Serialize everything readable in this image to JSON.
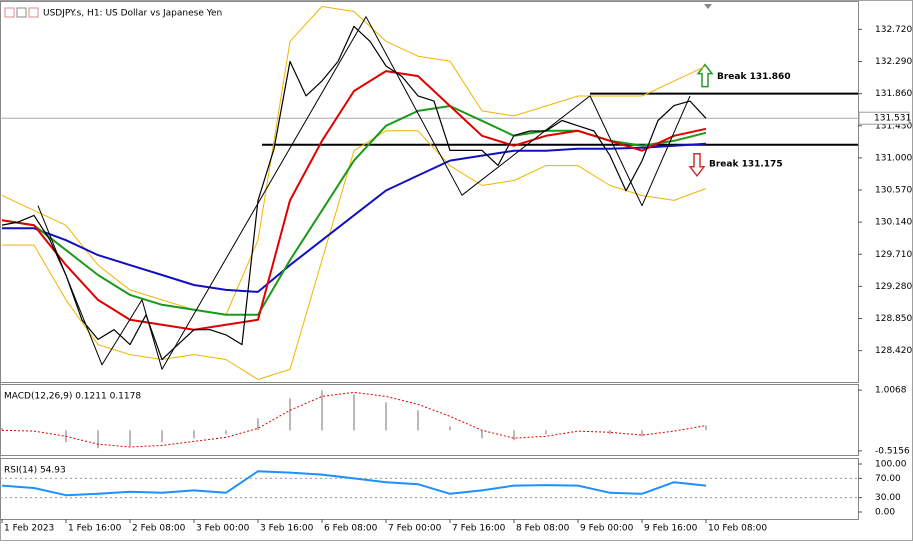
{
  "chart_data": [
    {
      "type": "line",
      "title": "USDJPY.s, H1:  US Dollar vs Japanese Yen",
      "xlim": [
        -0.5,
        214
      ],
      "xticks": [
        {
          "value": 0,
          "label": "1 Feb 2023"
        },
        {
          "value": 16,
          "label": "1 Feb 16:00"
        },
        {
          "value": 32,
          "label": "2 Feb 08:00"
        },
        {
          "value": 48,
          "label": "3 Feb 00:00"
        },
        {
          "value": 64,
          "label": "3 Feb 16:00"
        },
        {
          "value": 80,
          "label": "6 Feb 08:00"
        },
        {
          "value": 96,
          "label": "7 Feb 00:00"
        },
        {
          "value": 112,
          "label": "7 Feb 16:00"
        },
        {
          "value": 128,
          "label": "8 Feb 08:00"
        },
        {
          "value": 144,
          "label": "9 Feb 00:00"
        },
        {
          "value": 160,
          "label": "9 Feb 16:00"
        },
        {
          "value": 176,
          "label": "10 Feb 08:00"
        }
      ],
      "ylim": [
        128.0,
        133.1
      ],
      "yticks": [
        {
          "value": 132.72,
          "label": "132.720"
        },
        {
          "value": 132.29,
          "label": "132.290"
        },
        {
          "value": 131.86,
          "label": "131.860"
        },
        {
          "value": 131.43,
          "label": "131.430"
        },
        {
          "value": 131.0,
          "label": "131.000"
        },
        {
          "value": 130.57,
          "label": "130.570"
        },
        {
          "value": 130.14,
          "label": "130.140"
        },
        {
          "value": 129.71,
          "label": "129.710"
        },
        {
          "value": 129.28,
          "label": "129.280"
        },
        {
          "value": 128.85,
          "label": "128.850"
        },
        {
          "value": 128.42,
          "label": "128.420"
        }
      ],
      "x": [
        0,
        8,
        16,
        24,
        32,
        40,
        48,
        56,
        64,
        72,
        80,
        88,
        96,
        104,
        112,
        120,
        128,
        136,
        144,
        152,
        160,
        168,
        176
      ],
      "series": [
        {
          "style": "band",
          "color": "#f0b400",
          "values": [
            130.498,
            130.297,
            130.098,
            129.565,
            129.232,
            129.099,
            128.966,
            128.9,
            129.898,
            132.561,
            133.026,
            132.96,
            132.561,
            132.361,
            132.294,
            131.629,
            131.562,
            131.695,
            131.828,
            131.828,
            131.828,
            132.028,
            132.228
          ]
        },
        {
          "style": "band",
          "color": "#f0b400",
          "values": [
            129.832,
            129.832,
            129.099,
            128.5,
            128.367,
            128.301,
            128.367,
            128.301,
            128.034,
            128.168,
            129.632,
            131.096,
            131.362,
            131.362,
            130.897,
            130.63,
            130.697,
            130.897,
            130.897,
            130.63,
            130.497,
            130.431,
            130.59
          ]
        },
        {
          "style": "ma",
          "color": "#1010c0",
          "values": [
            130.058,
            130.058,
            129.898,
            129.698,
            129.565,
            129.432,
            129.299,
            129.233,
            129.206,
            129.565,
            129.898,
            130.231,
            130.564,
            130.764,
            130.963,
            131.03,
            131.096,
            131.096,
            131.123,
            131.123,
            131.136,
            131.163,
            131.189
          ]
        },
        {
          "style": "ma",
          "color": "#1a9a1a",
          "values": [
            130.164,
            130.098,
            129.765,
            129.432,
            129.166,
            129.033,
            128.966,
            128.9,
            128.9,
            129.632,
            130.297,
            130.963,
            131.429,
            131.629,
            131.695,
            131.496,
            131.296,
            131.362,
            131.362,
            131.229,
            131.163,
            131.229,
            131.336
          ]
        },
        {
          "style": "ma",
          "color": "#e00000",
          "values": [
            130.164,
            130.098,
            129.565,
            129.099,
            128.833,
            128.767,
            128.7,
            128.767,
            128.833,
            130.431,
            131.229,
            131.895,
            132.161,
            132.095,
            131.695,
            131.296,
            131.163,
            131.296,
            131.362,
            131.229,
            131.096,
            131.296,
            131.389
          ]
        },
        {
          "style": "price",
          "color": "#000000",
          "x": [
            0,
            4,
            8,
            12,
            16,
            20,
            24,
            28,
            32,
            36,
            40,
            44,
            48,
            52,
            56,
            60,
            64,
            68,
            72,
            76,
            80,
            84,
            88,
            92,
            96,
            100,
            104,
            108,
            112,
            116,
            120,
            124,
            128,
            132,
            136,
            140,
            144,
            148,
            152,
            156,
            160,
            164,
            168,
            172,
            176
          ],
          "values": [
            130.1,
            130.14,
            130.23,
            129.9,
            129.43,
            128.83,
            128.57,
            128.7,
            128.5,
            128.9,
            128.3,
            128.5,
            128.7,
            128.7,
            128.63,
            128.5,
            130.43,
            131.12,
            132.29,
            131.83,
            132.03,
            132.29,
            132.76,
            132.56,
            132.23,
            132.09,
            131.83,
            131.76,
            131.1,
            131.1,
            131.1,
            130.9,
            131.3,
            131.36,
            131.36,
            131.5,
            131.43,
            131.36,
            131.03,
            130.56,
            130.96,
            131.5,
            131.7,
            131.76,
            131.53
          ]
        },
        {
          "style": "zigzag",
          "color": "#000000",
          "x": [
            9,
            25,
            35,
            40,
            91,
            115,
            147,
            160,
            172
          ],
          "values": [
            130.36,
            128.23,
            129.1,
            128.17,
            132.89,
            130.5,
            131.83,
            130.36,
            131.83
          ]
        }
      ],
      "levels": [
        {
          "value": 131.86,
          "label": "Break 131.860",
          "start": 147
        },
        {
          "value": 131.175,
          "label": "Break 131.175",
          "start": 65
        }
      ],
      "last_price": 131.531
    },
    {
      "type": "bar",
      "title": "MACD(12,26,9) 0.1211 0.1178",
      "ylim": [
        -0.62,
        1.16
      ],
      "yticks": [
        1.0068,
        -0.5156
      ],
      "x": [
        0,
        8,
        16,
        24,
        32,
        40,
        48,
        56,
        64,
        72,
        80,
        88,
        96,
        104,
        112,
        120,
        128,
        136,
        144,
        152,
        160,
        168,
        176
      ],
      "series": [
        {
          "style": "histogram",
          "color": "#b8b8b8",
          "values": [
            0.05,
            0.0,
            -0.3,
            -0.45,
            -0.4,
            -0.3,
            -0.2,
            -0.1,
            0.3,
            0.8,
            1.0,
            0.9,
            0.7,
            0.5,
            0.1,
            -0.2,
            -0.25,
            -0.1,
            0.0,
            -0.1,
            -0.15,
            0.0,
            0.12
          ]
        },
        {
          "style": "dashed",
          "color": "#e00000",
          "values": [
            0.0,
            -0.02,
            -0.15,
            -0.35,
            -0.42,
            -0.38,
            -0.28,
            -0.18,
            0.05,
            0.5,
            0.85,
            0.95,
            0.85,
            0.65,
            0.35,
            0.0,
            -0.2,
            -0.15,
            -0.02,
            -0.05,
            -0.12,
            -0.02,
            0.118
          ]
        }
      ]
    },
    {
      "type": "line",
      "title": "RSI(14) 54.93",
      "ylim": [
        -14.6,
        112.5
      ],
      "yticks": [
        {
          "value": 100,
          "label": "100.00"
        },
        {
          "value": 70,
          "label": "70.00"
        },
        {
          "value": 30,
          "label": "30.00"
        },
        {
          "value": 0,
          "label": "0.00"
        }
      ],
      "levels": [
        70,
        30
      ],
      "x": [
        0,
        8,
        16,
        24,
        32,
        40,
        48,
        56,
        64,
        72,
        80,
        88,
        96,
        104,
        112,
        120,
        128,
        136,
        144,
        152,
        160,
        168,
        176
      ],
      "series": [
        {
          "style": "ma",
          "color": "#1e90ff",
          "values": [
            55,
            50,
            35,
            38,
            42,
            40,
            45,
            40,
            85,
            82,
            78,
            70,
            62,
            58,
            38,
            45,
            55,
            56,
            55,
            40,
            38,
            62,
            55
          ]
        }
      ]
    }
  ]
}
